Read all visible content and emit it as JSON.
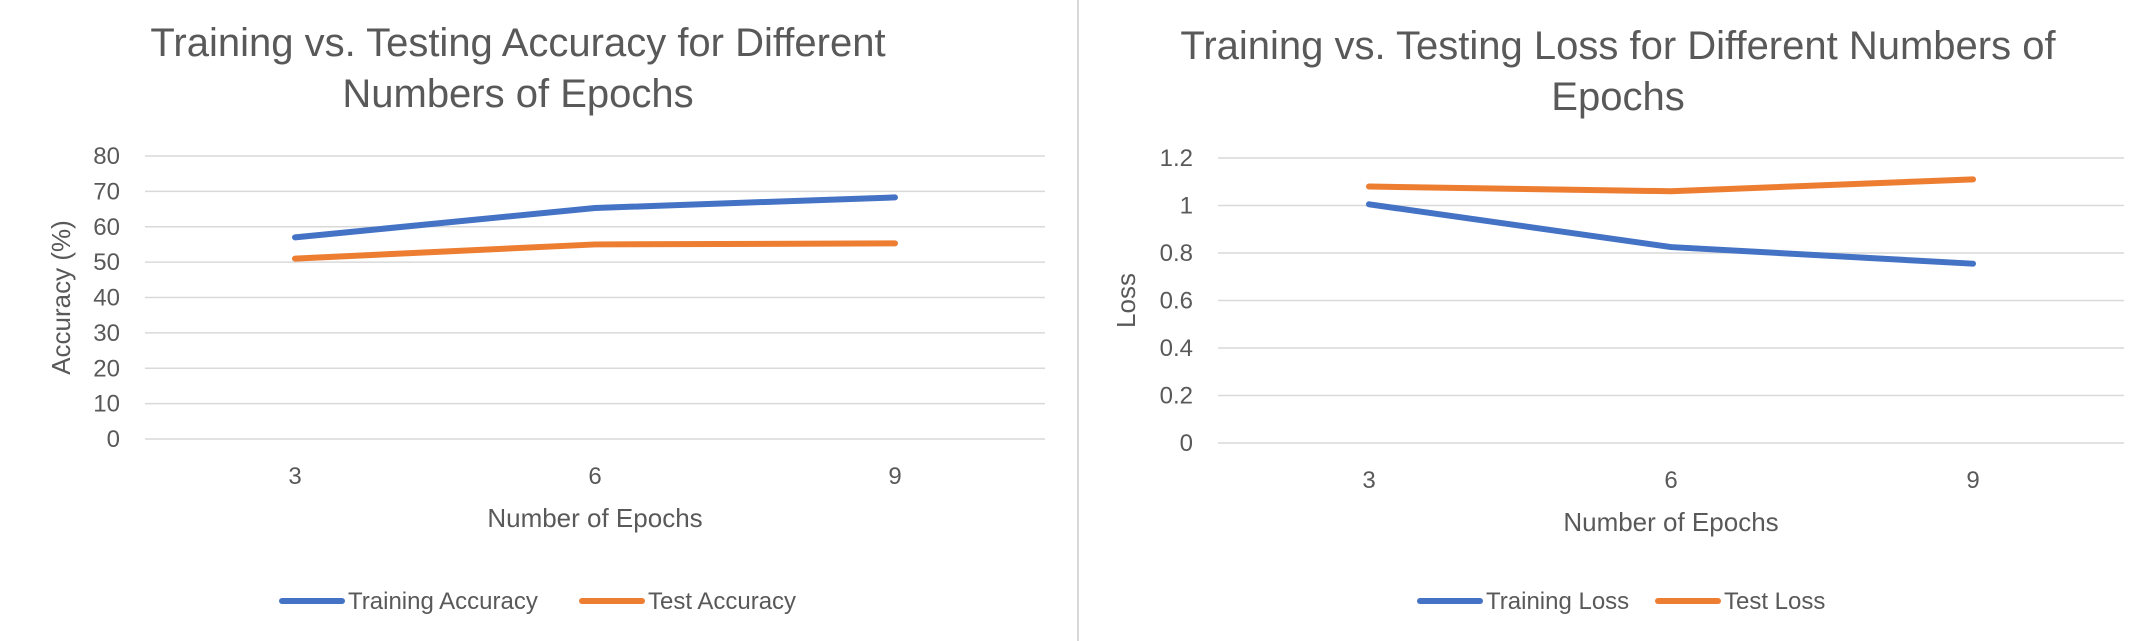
{
  "chart_data": [
    {
      "type": "line",
      "title": [
        "Training vs. Testing Accuracy for Different",
        "Numbers of Epochs"
      ],
      "xlabel": "Number of Epochs",
      "ylabel": "Accuracy (%)",
      "categories": [
        "3",
        "6",
        "9"
      ],
      "ylim": [
        0,
        80
      ],
      "yticks": [
        0,
        10,
        20,
        30,
        40,
        50,
        60,
        70,
        80
      ],
      "ytick_labels": [
        "0",
        "10",
        "20",
        "30",
        "40",
        "50",
        "60",
        "70",
        "80"
      ],
      "grid": true,
      "legend_position": "bottom",
      "series": [
        {
          "name": "Training Accuracy",
          "values": [
            57,
            65.3,
            68.3
          ],
          "color": "#4472c4"
        },
        {
          "name": "Test Accuracy",
          "values": [
            51,
            55,
            55.3
          ],
          "color": "#ed7d31"
        }
      ]
    },
    {
      "type": "line",
      "title": [
        "Training vs. Testing Loss for Different Numbers of",
        "Epochs"
      ],
      "xlabel": "Number of Epochs",
      "ylabel": "Loss",
      "categories": [
        "3",
        "6",
        "9"
      ],
      "ylim": [
        0,
        1.2
      ],
      "yticks": [
        0,
        0.2,
        0.4,
        0.6,
        0.8,
        1,
        1.2
      ],
      "ytick_labels": [
        "0",
        "0.2",
        "0.4",
        "0.6",
        "0.8",
        "1",
        "1.2"
      ],
      "grid": true,
      "legend_position": "bottom",
      "series": [
        {
          "name": "Training Loss",
          "values": [
            1.005,
            0.825,
            0.755
          ],
          "color": "#4472c4"
        },
        {
          "name": "Test Loss",
          "values": [
            1.08,
            1.06,
            1.11
          ],
          "color": "#ed7d31"
        }
      ]
    }
  ]
}
